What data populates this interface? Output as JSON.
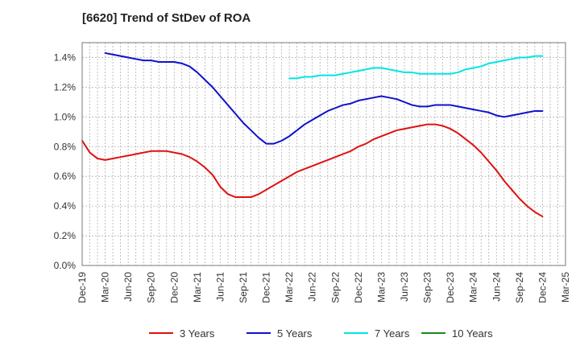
{
  "chart_data": {
    "type": "line",
    "title": "[6620]  Trend of StDev of ROA",
    "xlabel": "",
    "ylabel": "",
    "x_ticks": [
      "Dec-19",
      "Mar-20",
      "Jun-20",
      "Sep-20",
      "Dec-20",
      "Mar-21",
      "Jun-21",
      "Sep-21",
      "Dec-21",
      "Mar-22",
      "Jun-22",
      "Sep-22",
      "Dec-22",
      "Mar-23",
      "Jun-23",
      "Sep-23",
      "Dec-23",
      "Mar-24",
      "Jun-24",
      "Sep-24",
      "Dec-24",
      "Mar-25"
    ],
    "y_ticks": [
      "0.0%",
      "0.2%",
      "0.4%",
      "0.6%",
      "0.8%",
      "1.0%",
      "1.2%",
      "1.4%"
    ],
    "ylim": [
      0,
      1.5
    ],
    "y_unit": "%",
    "grid": true,
    "legend_position": "bottom",
    "series": [
      {
        "name": "3 Years",
        "color": "#e01010",
        "x": [
          "Dec-19",
          "Jan-20",
          "Feb-20",
          "Mar-20",
          "Apr-20",
          "May-20",
          "Jun-20",
          "Jul-20",
          "Aug-20",
          "Sep-20",
          "Oct-20",
          "Nov-20",
          "Dec-20",
          "Jan-21",
          "Feb-21",
          "Mar-21",
          "Apr-21",
          "May-21",
          "Jun-21",
          "Jul-21",
          "Aug-21",
          "Sep-21",
          "Oct-21",
          "Nov-21",
          "Dec-21",
          "Jan-22",
          "Feb-22",
          "Mar-22",
          "Apr-22",
          "May-22",
          "Jun-22",
          "Jul-22",
          "Aug-22",
          "Sep-22",
          "Oct-22",
          "Nov-22",
          "Dec-22",
          "Jan-23",
          "Feb-23",
          "Mar-23",
          "Apr-23",
          "May-23",
          "Jun-23",
          "Jul-23",
          "Aug-23",
          "Sep-23",
          "Oct-23",
          "Nov-23",
          "Dec-23",
          "Jan-24",
          "Feb-24",
          "Mar-24",
          "Apr-24",
          "May-24",
          "Jun-24",
          "Jul-24",
          "Aug-24",
          "Sep-24",
          "Oct-24",
          "Nov-24",
          "Dec-24"
        ],
        "values": [
          0.84,
          0.76,
          0.72,
          0.71,
          0.72,
          0.73,
          0.74,
          0.75,
          0.76,
          0.77,
          0.77,
          0.77,
          0.76,
          0.75,
          0.73,
          0.7,
          0.66,
          0.61,
          0.53,
          0.48,
          0.46,
          0.46,
          0.46,
          0.48,
          0.51,
          0.54,
          0.57,
          0.6,
          0.63,
          0.65,
          0.67,
          0.69,
          0.71,
          0.73,
          0.75,
          0.77,
          0.8,
          0.82,
          0.85,
          0.87,
          0.89,
          0.91,
          0.92,
          0.93,
          0.94,
          0.95,
          0.95,
          0.94,
          0.92,
          0.89,
          0.85,
          0.81,
          0.76,
          0.7,
          0.64,
          0.57,
          0.51,
          0.45,
          0.4,
          0.36,
          0.33
        ]
      },
      {
        "name": "5 Years",
        "color": "#1010cc",
        "x": [
          "Mar-20",
          "Apr-20",
          "May-20",
          "Jun-20",
          "Jul-20",
          "Aug-20",
          "Sep-20",
          "Oct-20",
          "Nov-20",
          "Dec-20",
          "Jan-21",
          "Feb-21",
          "Mar-21",
          "Apr-21",
          "May-21",
          "Jun-21",
          "Jul-21",
          "Aug-21",
          "Sep-21",
          "Oct-21",
          "Nov-21",
          "Dec-21",
          "Jan-22",
          "Feb-22",
          "Mar-22",
          "Apr-22",
          "May-22",
          "Jun-22",
          "Jul-22",
          "Aug-22",
          "Sep-22",
          "Oct-22",
          "Nov-22",
          "Dec-22",
          "Jan-23",
          "Feb-23",
          "Mar-23",
          "Apr-23",
          "May-23",
          "Jun-23",
          "Jul-23",
          "Aug-23",
          "Sep-23",
          "Oct-23",
          "Nov-23",
          "Dec-23",
          "Jan-24",
          "Feb-24",
          "Mar-24",
          "Apr-24",
          "May-24",
          "Jun-24",
          "Jul-24",
          "Aug-24",
          "Sep-24",
          "Oct-24",
          "Nov-24",
          "Dec-24"
        ],
        "values": [
          1.43,
          1.42,
          1.41,
          1.4,
          1.39,
          1.38,
          1.38,
          1.37,
          1.37,
          1.37,
          1.36,
          1.34,
          1.3,
          1.25,
          1.2,
          1.14,
          1.08,
          1.02,
          0.96,
          0.91,
          0.86,
          0.82,
          0.82,
          0.84,
          0.87,
          0.91,
          0.95,
          0.98,
          1.01,
          1.04,
          1.06,
          1.08,
          1.09,
          1.11,
          1.12,
          1.13,
          1.14,
          1.13,
          1.12,
          1.1,
          1.08,
          1.07,
          1.07,
          1.08,
          1.08,
          1.08,
          1.07,
          1.06,
          1.05,
          1.04,
          1.03,
          1.01,
          1.0,
          1.01,
          1.02,
          1.03,
          1.04,
          1.04
        ]
      },
      {
        "name": "7 Years",
        "color": "#00e5e5",
        "x": [
          "Mar-22",
          "Apr-22",
          "May-22",
          "Jun-22",
          "Jul-22",
          "Aug-22",
          "Sep-22",
          "Oct-22",
          "Nov-22",
          "Dec-22",
          "Jan-23",
          "Feb-23",
          "Mar-23",
          "Apr-23",
          "May-23",
          "Jun-23",
          "Jul-23",
          "Aug-23",
          "Sep-23",
          "Oct-23",
          "Nov-23",
          "Dec-23",
          "Jan-24",
          "Feb-24",
          "Mar-24",
          "Apr-24",
          "May-24",
          "Jun-24",
          "Jul-24",
          "Aug-24",
          "Sep-24",
          "Oct-24",
          "Nov-24",
          "Dec-24"
        ],
        "values": [
          1.26,
          1.26,
          1.27,
          1.27,
          1.28,
          1.28,
          1.28,
          1.29,
          1.3,
          1.31,
          1.32,
          1.33,
          1.33,
          1.32,
          1.31,
          1.3,
          1.3,
          1.29,
          1.29,
          1.29,
          1.29,
          1.29,
          1.3,
          1.32,
          1.33,
          1.34,
          1.36,
          1.37,
          1.38,
          1.39,
          1.4,
          1.4,
          1.41,
          1.41
        ]
      },
      {
        "name": "10 Years",
        "color": "#1a8a1a",
        "x": [],
        "values": []
      }
    ]
  }
}
